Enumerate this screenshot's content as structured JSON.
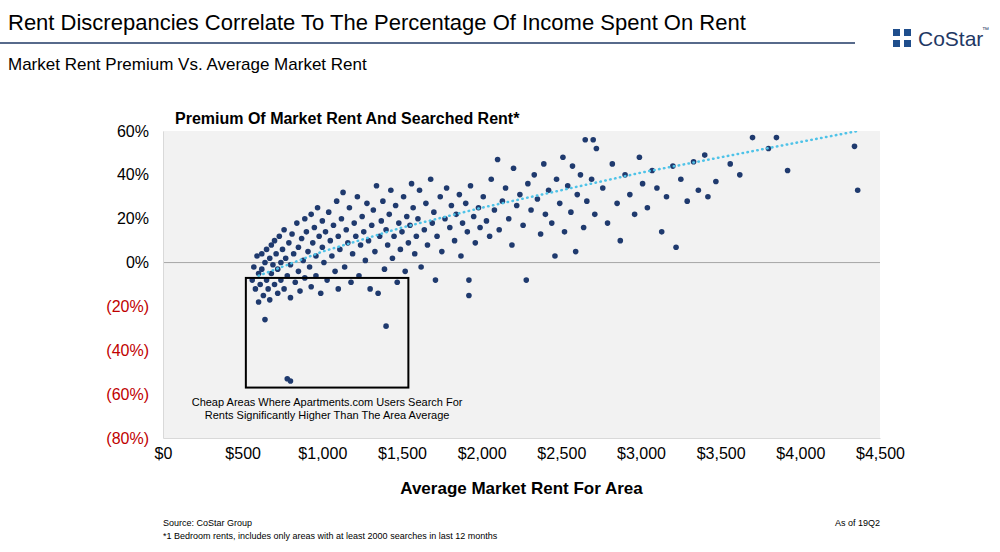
{
  "header": {
    "title": "Rent Discrepancies Correlate To The Percentage Of Income Spent On Rent",
    "subtitle": "Market Rent Premium Vs. Average Market Rent",
    "logo": "CoStar",
    "logo_mark": "™"
  },
  "chart_data": {
    "type": "scatter",
    "title": "Premium Of Market Rent And Searched Rent*",
    "x_label": "Average Market Rent For Area",
    "xlim": [
      0,
      4500
    ],
    "xticks": [
      {
        "value": 0,
        "label": "$0"
      },
      {
        "value": 500,
        "label": "$500"
      },
      {
        "value": 1000,
        "label": "$1,000"
      },
      {
        "value": 1500,
        "label": "$1,500"
      },
      {
        "value": 2000,
        "label": "$2,000"
      },
      {
        "value": 2500,
        "label": "$2,500"
      },
      {
        "value": 3000,
        "label": "$3,000"
      },
      {
        "value": 3500,
        "label": "$3,500"
      },
      {
        "value": 4000,
        "label": "$4,000"
      },
      {
        "value": 4500,
        "label": "$4,500"
      }
    ],
    "ylim": [
      -80,
      60
    ],
    "yticks": [
      {
        "value": 60,
        "label": "60%"
      },
      {
        "value": 40,
        "label": "40%"
      },
      {
        "value": 20,
        "label": "20%"
      },
      {
        "value": 0,
        "label": "0%"
      },
      {
        "value": -20,
        "label": "(20%)"
      },
      {
        "value": -40,
        "label": "(40%)"
      },
      {
        "value": -60,
        "label": "(60%)"
      },
      {
        "value": -80,
        "label": "(80%)"
      }
    ],
    "grid": false,
    "annotation": {
      "text": [
        "Cheap Areas Where Apartments.com Users Search For",
        "Rents Significantly Higher Than The Area Average"
      ],
      "x": [
        520,
        1540
      ],
      "y": [
        -57,
        -7
      ]
    },
    "series": [
      {
        "type": "scatter",
        "color": "#1f3a6e",
        "marker": "circle",
        "x": [
          560,
          570,
          580,
          590,
          600,
          600,
          610,
          620,
          620,
          630,
          640,
          640,
          650,
          650,
          660,
          670,
          670,
          680,
          680,
          690,
          700,
          700,
          710,
          720,
          720,
          730,
          740,
          740,
          750,
          760,
          760,
          770,
          780,
          780,
          790,
          800,
          800,
          800,
          810,
          820,
          830,
          840,
          850,
          850,
          860,
          870,
          880,
          890,
          890,
          900,
          910,
          920,
          930,
          930,
          940,
          950,
          960,
          960,
          970,
          980,
          990,
          1000,
          1000,
          1010,
          1020,
          1030,
          1040,
          1050,
          1060,
          1070,
          1080,
          1090,
          1100,
          1100,
          1110,
          1120,
          1130,
          1140,
          1150,
          1160,
          1170,
          1180,
          1190,
          1200,
          1210,
          1220,
          1230,
          1240,
          1250,
          1260,
          1270,
          1280,
          1290,
          1300,
          1310,
          1320,
          1330,
          1340,
          1350,
          1360,
          1370,
          1380,
          1390,
          1400,
          1400,
          1410,
          1420,
          1430,
          1440,
          1450,
          1460,
          1470,
          1480,
          1490,
          1500,
          1510,
          1520,
          1530,
          1540,
          1550,
          1560,
          1570,
          1580,
          1590,
          1600,
          1610,
          1620,
          1640,
          1650,
          1660,
          1680,
          1690,
          1700,
          1710,
          1720,
          1740,
          1750,
          1770,
          1780,
          1800,
          1810,
          1830,
          1840,
          1860,
          1870,
          1880,
          1900,
          1910,
          1920,
          1920,
          1930,
          1950,
          1960,
          1980,
          1990,
          2010,
          2030,
          2050,
          2060,
          2080,
          2100,
          2110,
          2130,
          2150,
          2170,
          2190,
          2200,
          2220,
          2240,
          2260,
          2280,
          2290,
          2310,
          2330,
          2350,
          2370,
          2390,
          2400,
          2420,
          2440,
          2460,
          2470,
          2490,
          2510,
          2520,
          2540,
          2560,
          2570,
          2590,
          2600,
          2620,
          2640,
          2650,
          2660,
          2690,
          2700,
          2710,
          2720,
          2760,
          2790,
          2820,
          2850,
          2870,
          2900,
          2930,
          2960,
          2990,
          3010,
          3040,
          3070,
          3100,
          3130,
          3160,
          3200,
          3220,
          3250,
          3290,
          3330,
          3360,
          3400,
          3420,
          3470,
          3560,
          3620,
          3700,
          3800,
          3850,
          3920,
          4340,
          4360
        ],
        "values": [
          -8,
          -2,
          -12,
          3,
          -5,
          -18,
          -10,
          4,
          -3,
          -15,
          -26,
          0,
          6,
          -8,
          -12,
          2,
          -17,
          8,
          -5,
          -1,
          10,
          -10,
          4,
          -14,
          -3,
          12,
          0,
          -8,
          6,
          -12,
          15,
          2,
          -53,
          -6,
          9,
          -54,
          -1,
          -16,
          13,
          4,
          -9,
          18,
          7,
          -4,
          -13,
          11,
          1,
          20,
          -7,
          14,
          5,
          -2,
          22,
          -11,
          9,
          16,
          3,
          -6,
          25,
          12,
          -14,
          7,
          19,
          0,
          14,
          -8,
          23,
          10,
          3,
          17,
          -4,
          28,
          12,
          -12,
          6,
          20,
          32,
          -2,
          15,
          9,
          25,
          -9,
          4,
          18,
          12,
          30,
          -6,
          8,
          21,
          14,
          1,
          27,
          10,
          -12,
          17,
          24,
          5,
          35,
          -14,
          12,
          19,
          28,
          -3,
          -29,
          15,
          8,
          22,
          33,
          2,
          12,
          26,
          -9,
          18,
          6,
          14,
          30,
          -4,
          21,
          9,
          17,
          36,
          25,
          4,
          12,
          20,
          33,
          -2,
          15,
          27,
          8,
          38,
          18,
          23,
          -8,
          12,
          30,
          5,
          20,
          34,
          16,
          26,
          10,
          22,
          31,
          3,
          18,
          27,
          14,
          -15,
          -8,
          35,
          21,
          9,
          25,
          16,
          30,
          19,
          12,
          38,
          24,
          47,
          15,
          28,
          34,
          20,
          8,
          43,
          26,
          31,
          17,
          -8,
          36,
          24,
          40,
          29,
          13,
          45,
          22,
          33,
          18,
          3,
          38,
          27,
          48,
          14,
          35,
          23,
          44,
          5,
          31,
          40,
          16,
          56,
          28,
          38,
          56,
          22,
          52,
          34,
          18,
          45,
          27,
          10,
          40,
          31,
          22,
          48,
          36,
          25,
          42,
          34,
          14,
          30,
          44,
          7,
          38,
          28,
          46,
          33,
          49,
          30,
          37,
          45,
          40,
          57,
          52,
          57,
          42,
          53,
          33
        ]
      },
      {
        "type": "line",
        "color": "#4fc3e8",
        "line_style": "dotted",
        "x": [
          600,
          1000,
          1500,
          2000,
          2500,
          3000,
          3500,
          4000,
          4360
        ],
        "values": [
          -6,
          5,
          16,
          25,
          33,
          41,
          48,
          55,
          60
        ]
      }
    ]
  },
  "footer": {
    "source": "Source: CoStar Group",
    "note": "*1 Bedroom rents, includes only areas with at least 2000 searches in last 12 months",
    "as_of": "As of 19Q2"
  }
}
